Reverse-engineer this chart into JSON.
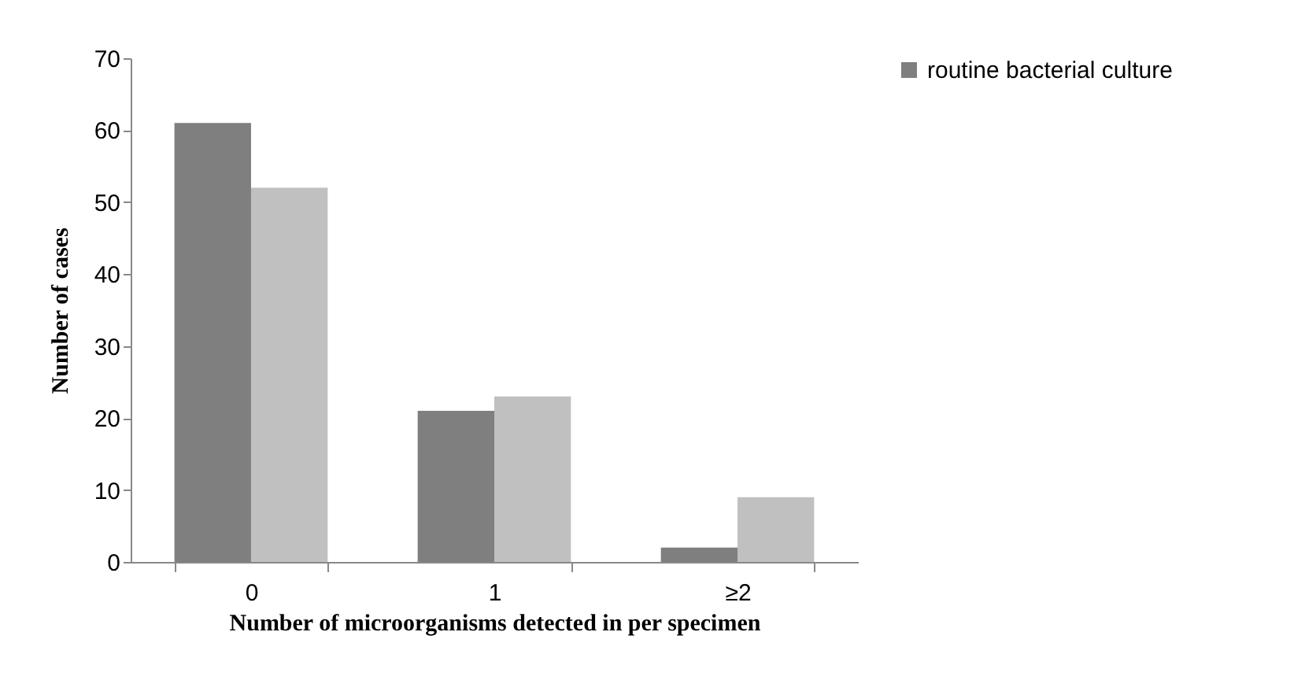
{
  "chart_data": {
    "type": "bar",
    "xlabel": "Number of  microorganisms detected in per specimen",
    "ylabel": "Number of cases",
    "categories": [
      "0",
      "1",
      "≥2"
    ],
    "series": [
      {
        "name": "routine bacterial culture",
        "color": "#7f7f7f",
        "values": [
          61,
          21,
          2
        ]
      },
      {
        "color": "#c0c0c0",
        "values": [
          52,
          23,
          9
        ]
      }
    ],
    "ylim": [
      0,
      70
    ],
    "yticks": [
      0,
      10,
      20,
      30,
      40,
      50,
      60,
      70
    ],
    "grid": false,
    "legend": "right"
  }
}
